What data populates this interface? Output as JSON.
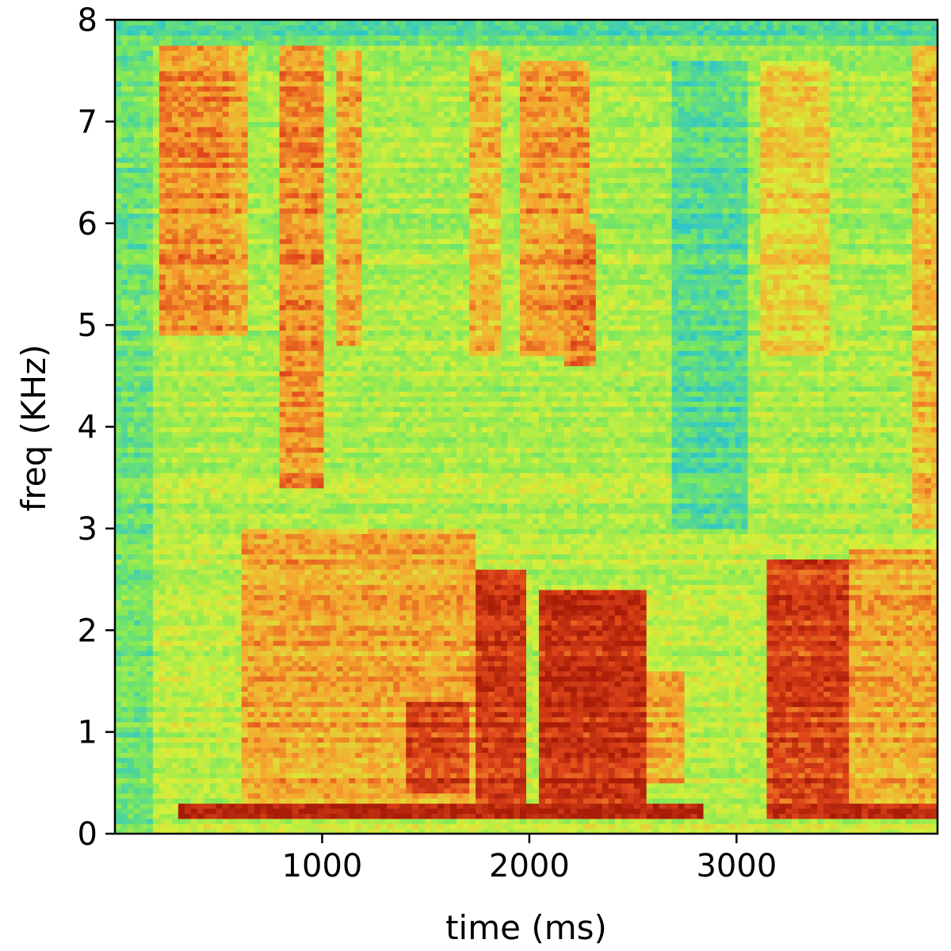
{
  "chart_data": {
    "type": "heatmap",
    "title": "",
    "xlabel": "time (ms)",
    "ylabel": "freq (KHz)",
    "xlim": [
      0,
      3970
    ],
    "ylim": [
      0,
      8
    ],
    "x_ticks": [
      1000,
      2000,
      3000
    ],
    "x_tick_labels": [
      "1000",
      "2000",
      "3000"
    ],
    "y_ticks": [
      0,
      1,
      2,
      3,
      4,
      5,
      6,
      7,
      8
    ],
    "y_tick_labels": [
      "0",
      "1",
      "2",
      "3",
      "4",
      "5",
      "6",
      "7",
      "8"
    ],
    "colormap": "jet-like (blue-green = low energy, yellow = mid, orange-red = high)",
    "colors": {
      "low": "#2ec7c9",
      "low_mid": "#7ee85a",
      "mid": "#d8ef3a",
      "high_mid": "#f5a62f",
      "high": "#e0461a",
      "peak": "#a81c08"
    },
    "grid": false,
    "legend": "none",
    "energy_regions": [
      {
        "t": [
          200,
          550
        ],
        "f": [
          4.9,
          7.8
        ],
        "level": 0.75
      },
      {
        "t": [
          540,
          650
        ],
        "f": [
          4.9,
          7.8
        ],
        "level": 0.7
      },
      {
        "t": [
          800,
          1000
        ],
        "f": [
          3.4,
          7.8
        ],
        "level": 0.75
      },
      {
        "t": [
          1080,
          1180
        ],
        "f": [
          4.8,
          7.7
        ],
        "level": 0.7
      },
      {
        "t": [
          1720,
          1850
        ],
        "f": [
          4.7,
          7.7
        ],
        "level": 0.68
      },
      {
        "t": [
          1950,
          2300
        ],
        "f": [
          4.7,
          7.6
        ],
        "level": 0.72
      },
      {
        "t": [
          2180,
          2330
        ],
        "f": [
          4.6,
          6.0
        ],
        "level": 0.78
      },
      {
        "t": [
          3130,
          3460
        ],
        "f": [
          4.7,
          7.6
        ],
        "level": 0.62
      },
      {
        "t": [
          3840,
          3970
        ],
        "f": [
          3.0,
          7.8
        ],
        "level": 0.68
      },
      {
        "t": [
          600,
          1750
        ],
        "f": [
          0.2,
          3.0
        ],
        "level": 0.7
      },
      {
        "t": [
          1400,
          1700
        ],
        "f": [
          0.4,
          1.3
        ],
        "level": 0.88
      },
      {
        "t": [
          1740,
          2000
        ],
        "f": [
          0.3,
          2.6
        ],
        "level": 0.9
      },
      {
        "t": [
          2050,
          2550
        ],
        "f": [
          0.3,
          2.4
        ],
        "level": 0.92
      },
      {
        "t": [
          2550,
          2750
        ],
        "f": [
          0.5,
          1.6
        ],
        "level": 0.7
      },
      {
        "t": [
          3150,
          3550
        ],
        "f": [
          0.3,
          2.7
        ],
        "level": 0.88
      },
      {
        "t": [
          3550,
          3970
        ],
        "f": [
          0.2,
          2.8
        ],
        "level": 0.7
      },
      {
        "t": [
          300,
          2850
        ],
        "f": [
          0.15,
          0.3
        ],
        "level": 0.97
      },
      {
        "t": [
          3150,
          3970
        ],
        "f": [
          0.15,
          0.3
        ],
        "level": 0.95
      }
    ],
    "quiet_regions": [
      {
        "t": [
          0,
          170
        ],
        "f": [
          0,
          8
        ],
        "level": 0.35
      },
      {
        "t": [
          2700,
          3050
        ],
        "f": [
          3.0,
          7.6
        ],
        "level": 0.3
      },
      {
        "t": [
          0,
          3970
        ],
        "f": [
          7.75,
          8
        ],
        "level": 0.3
      }
    ]
  }
}
